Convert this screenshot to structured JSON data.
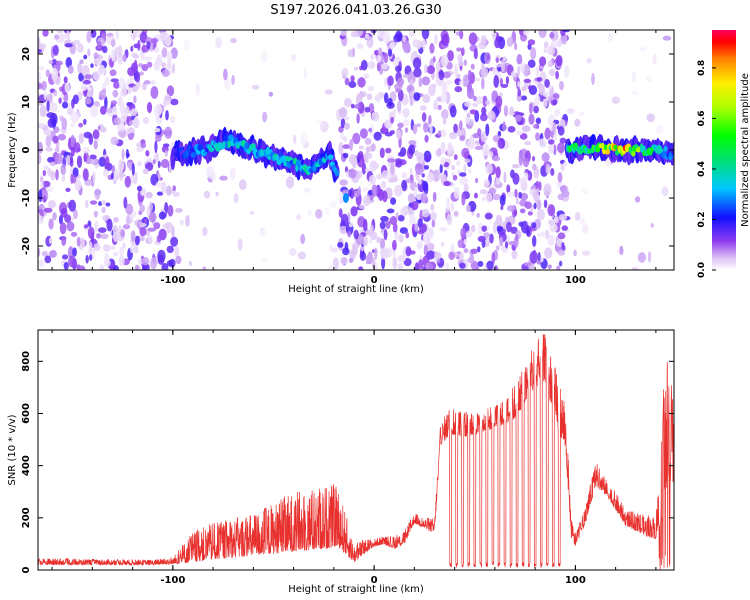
{
  "title": "S197.2026.041.03.26.G30",
  "chart_data": [
    {
      "type": "heatmap",
      "xlabel": "Height of straight line (km)",
      "ylabel": "Frequency (Hz)",
      "xlim": [
        -167,
        149
      ],
      "ylim": [
        -25,
        25
      ],
      "x_ticks": [
        "-100",
        "0",
        "100"
      ],
      "y_ticks": [
        "20",
        "10",
        "0",
        "-10",
        "-20"
      ],
      "colorbar": {
        "label": "Normalized spectral amplitude",
        "range": [
          0,
          0.95
        ],
        "ticks": [
          "0.0",
          "0.2",
          "0.4",
          "0.6",
          "0.8"
        ]
      },
      "blank_x_ranges": [
        [
          -99,
          -17
        ],
        [
          96,
          149
        ]
      ],
      "signal_track": [
        {
          "x": -100,
          "y": -1,
          "amp": 0.25
        },
        {
          "x": -85,
          "y": 0,
          "amp": 0.35
        },
        {
          "x": -72,
          "y": 2,
          "amp": 0.45
        },
        {
          "x": -60,
          "y": 0,
          "amp": 0.4
        },
        {
          "x": -45,
          "y": -2,
          "amp": 0.4
        },
        {
          "x": -33,
          "y": -4,
          "amp": 0.45
        },
        {
          "x": -22,
          "y": -1,
          "amp": 0.35
        },
        {
          "x": -14,
          "y": -10,
          "amp": 0.3
        },
        {
          "x": 96,
          "y": 0,
          "amp": 0.55
        },
        {
          "x": 110,
          "y": 0.5,
          "amp": 0.7
        },
        {
          "x": 125,
          "y": 0,
          "amp": 0.9
        },
        {
          "x": 140,
          "y": 0,
          "amp": 0.5
        },
        {
          "x": 149,
          "y": -1,
          "amp": 0.3
        }
      ]
    },
    {
      "type": "line",
      "xlabel": "Height of straight line (km)",
      "ylabel": "SNR (10 * v/v)",
      "xlim": [
        -167,
        149
      ],
      "ylim": [
        0,
        920
      ],
      "x_ticks": [
        "-100",
        "0",
        "100"
      ],
      "y_ticks": [
        "0",
        "200",
        "400",
        "600",
        "800"
      ],
      "color": "#e8312e",
      "envelope": {
        "x": [
          -167,
          -110,
          -100,
          -90,
          -80,
          -60,
          -40,
          -25,
          -18,
          -10,
          -5,
          0,
          5,
          10,
          15,
          20,
          25,
          30,
          33,
          38,
          45,
          55,
          65,
          70,
          75,
          80,
          85,
          90,
          95,
          98,
          100,
          105,
          110,
          115,
          120,
          125,
          130,
          135,
          140,
          145,
          149
        ],
        "base": [
          20,
          20,
          22,
          30,
          40,
          55,
          70,
          80,
          90,
          30,
          60,
          90,
          100,
          80,
          100,
          180,
          160,
          140,
          480,
          520,
          510,
          530,
          560,
          580,
          640,
          700,
          720,
          560,
          470,
          120,
          90,
          180,
          320,
          290,
          230,
          170,
          150,
          130,
          120,
          250,
          350
        ],
        "peak": [
          45,
          40,
          50,
          150,
          180,
          220,
          300,
          330,
          330,
          100,
          120,
          120,
          130,
          130,
          150,
          220,
          200,
          200,
          560,
          640,
          610,
          620,
          650,
          720,
          780,
          880,
          910,
          780,
          650,
          200,
          140,
          240,
          420,
          350,
          300,
          230,
          220,
          210,
          210,
          860,
          700
        ]
      },
      "dropouts": [
        38,
        41,
        44,
        47,
        50,
        53,
        56,
        59,
        62,
        65,
        68,
        71,
        74,
        77,
        80,
        83,
        86,
        89,
        92
      ]
    }
  ]
}
